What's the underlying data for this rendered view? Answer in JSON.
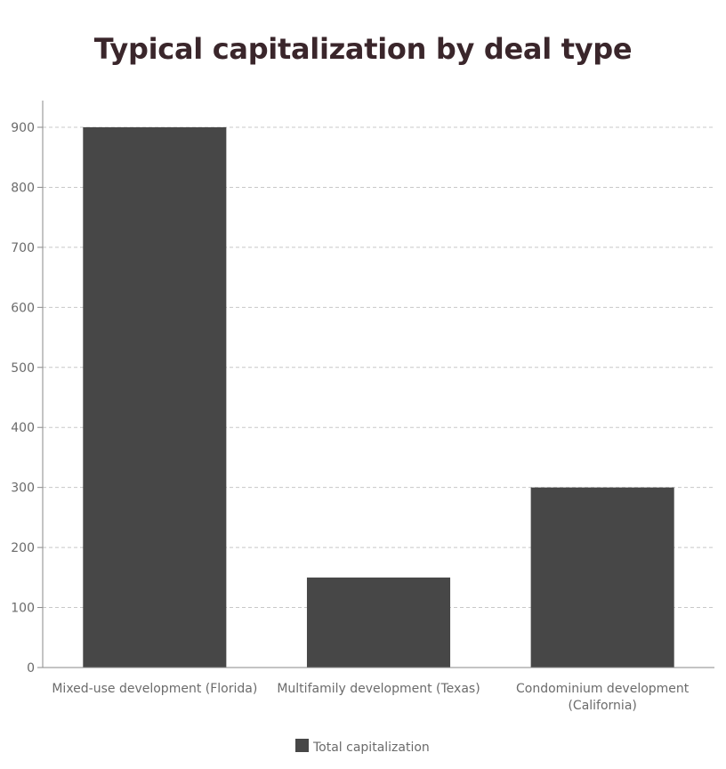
{
  "chart_data": {
    "type": "bar",
    "title": "Typical capitalization by deal type",
    "categories": [
      [
        "Mixed-use development (Florida)"
      ],
      [
        "Multifamily development (Texas)"
      ],
      [
        "Condominium development",
        "(California)"
      ]
    ],
    "series": [
      {
        "name": "Total capitalization",
        "values": [
          900,
          150,
          300
        ]
      }
    ],
    "ylim": [
      0,
      900
    ],
    "yticks": [
      0,
      100,
      200,
      300,
      400,
      500,
      600,
      700,
      800,
      900
    ],
    "grid": true,
    "legend_position": "bottom",
    "colors": {
      "bar": "#474747",
      "grid": "#c8c8c8",
      "axis": "#8a8a8a",
      "title": "#3a262b"
    }
  }
}
